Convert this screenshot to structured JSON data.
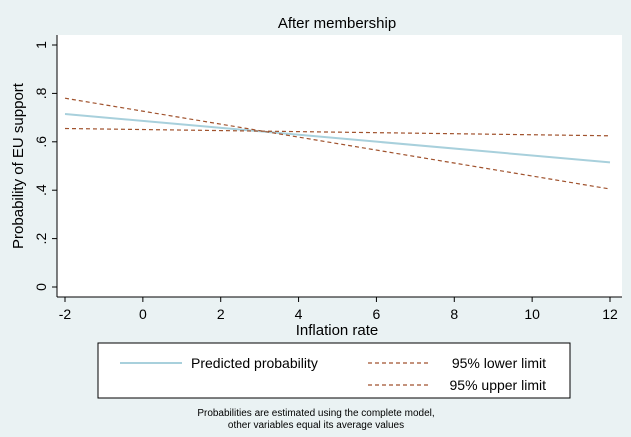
{
  "chart_data": {
    "type": "line",
    "title": "After membership",
    "xlabel": "Inflation rate",
    "ylabel": "Probability of EU support",
    "xlim": [
      -2,
      12
    ],
    "ylim": [
      0,
      1
    ],
    "x_ticks": [
      "-2",
      "0",
      "2",
      "4",
      "6",
      "8",
      "10",
      "12"
    ],
    "x_tick_values": [
      -2,
      0,
      2,
      4,
      6,
      8,
      10,
      12
    ],
    "y_ticks": [
      "0",
      ".2",
      ".4",
      ".6",
      ".8",
      "1"
    ],
    "y_tick_values": [
      0,
      0.2,
      0.4,
      0.6,
      0.8,
      1
    ],
    "grid": false,
    "series": [
      {
        "name": "Predicted probability",
        "style": "solid",
        "color": "#a8d0dc",
        "x": [
          -2,
          12
        ],
        "y": [
          0.715,
          0.515
        ]
      },
      {
        "name": "95% lower limit",
        "style": "dashed",
        "color": "#a0522d",
        "x": [
          -2,
          12
        ],
        "y": [
          0.78,
          0.405
        ]
      },
      {
        "name": "95% upper limit",
        "style": "dashed",
        "color": "#a0522d",
        "x": [
          -2,
          12
        ],
        "y": [
          0.655,
          0.625
        ]
      }
    ],
    "legend_position": "bottom",
    "note_lines": [
      "Probabilities are estimated using the complete model,",
      "other variables equal its average values"
    ]
  }
}
